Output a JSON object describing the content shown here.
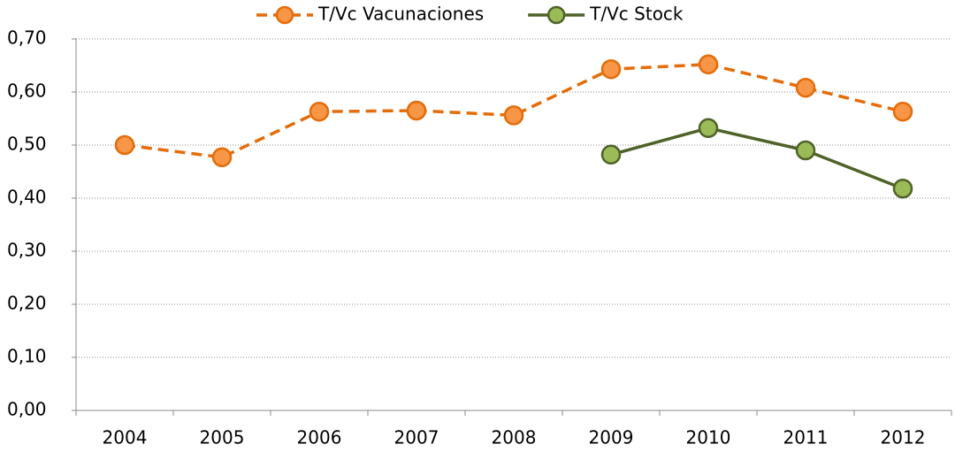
{
  "chart_data": {
    "type": "line",
    "categories": [
      "2004",
      "2005",
      "2006",
      "2007",
      "2008",
      "2009",
      "2010",
      "2011",
      "2012"
    ],
    "series": [
      {
        "name": "T/Vc Vacunaciones",
        "color": "#e46c0a",
        "marker_color": "#f79646",
        "dashed": true,
        "values": [
          0.5,
          0.477,
          0.563,
          0.565,
          0.556,
          0.643,
          0.652,
          0.608,
          0.563
        ]
      },
      {
        "name": "T/Vc Stock",
        "color": "#4f6228",
        "marker_color": "#9bbb59",
        "dashed": false,
        "values": [
          null,
          null,
          null,
          null,
          null,
          0.482,
          0.532,
          0.49,
          0.418
        ]
      }
    ],
    "ylim": [
      0,
      0.7
    ],
    "yticks": [
      {
        "value": 0,
        "label": "0,00"
      },
      {
        "value": 0.1,
        "label": "0,10"
      },
      {
        "value": 0.2,
        "label": "0,20"
      },
      {
        "value": 0.3,
        "label": "0,30"
      },
      {
        "value": 0.4,
        "label": "0,40"
      },
      {
        "value": 0.5,
        "label": "0,50"
      },
      {
        "value": 0.6,
        "label": "0,60"
      },
      {
        "value": 0.7,
        "label": "0,70"
      }
    ],
    "grid": true,
    "legend": "top"
  }
}
